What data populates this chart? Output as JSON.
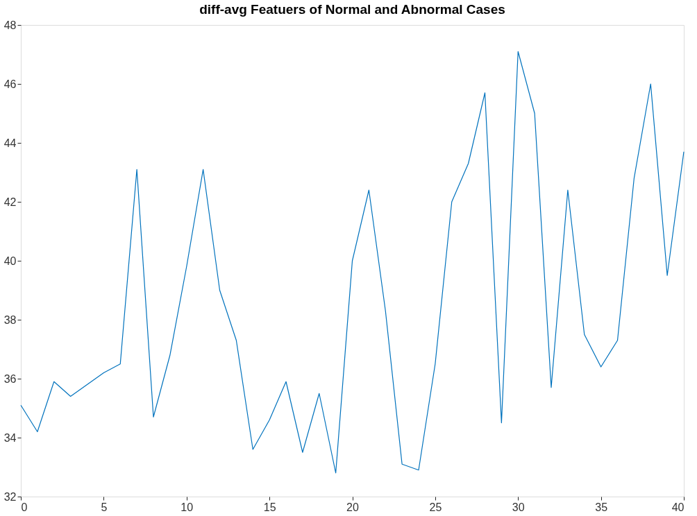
{
  "chart_data": {
    "type": "line",
    "title": "diff-avg  Featuers of Normal and Abnormal Cases",
    "x": [
      0,
      1,
      2,
      3,
      4,
      5,
      6,
      7,
      8,
      9,
      10,
      11,
      12,
      13,
      14,
      15,
      16,
      17,
      18,
      19,
      20,
      21,
      22,
      23,
      24,
      25,
      26,
      27,
      28,
      29,
      30,
      31,
      32,
      33,
      34,
      35,
      36,
      37,
      38,
      39,
      40
    ],
    "series": [
      {
        "color": "#0072bd",
        "values": [
          35.1,
          34.2,
          35.9,
          35.4,
          35.8,
          36.2,
          36.5,
          43.1,
          34.7,
          36.8,
          39.8,
          43.1,
          39.0,
          37.3,
          33.6,
          34.6,
          35.9,
          33.5,
          35.5,
          32.8,
          40.0,
          42.4,
          38.3,
          33.1,
          32.9,
          36.5,
          42.0,
          43.3,
          45.7,
          34.5,
          47.1,
          45.0,
          35.7,
          42.4,
          37.5,
          36.4,
          37.3,
          42.8,
          46.0,
          39.5,
          43.7
        ]
      }
    ],
    "xlim": [
      0,
      40
    ],
    "xticks": [
      0,
      5,
      10,
      15,
      20,
      25,
      30,
      35,
      40
    ],
    "ylim": [
      32,
      48
    ],
    "yticks": [
      32,
      34,
      36,
      38,
      40,
      42,
      44,
      46,
      48
    ],
    "grid": false,
    "marker": "none",
    "line_style": "solid"
  }
}
